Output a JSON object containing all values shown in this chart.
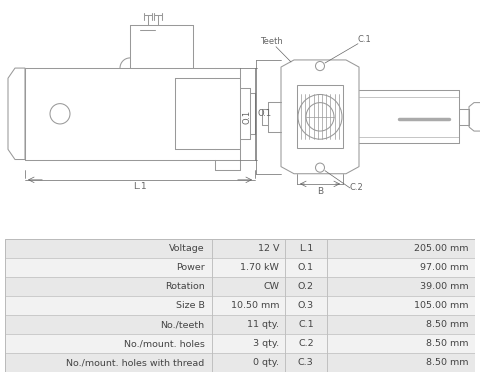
{
  "bg_color": "#ffffff",
  "diagram_bg": "#ffffff",
  "table_bg_alt": [
    "#e8e8e8",
    "#f2f2f2"
  ],
  "table_border": "#bbbbbb",
  "line_color": "#999999",
  "dim_color": "#666666",
  "text_color": "#444444",
  "table_rows": [
    {
      "label": "Voltage",
      "value": "12 V",
      "dim_label": "L.1",
      "dim_value": "205.00 mm"
    },
    {
      "label": "Power",
      "value": "1.70 kW",
      "dim_label": "O.1",
      "dim_value": "97.00 mm"
    },
    {
      "label": "Rotation",
      "value": "CW",
      "dim_label": "O.2",
      "dim_value": "39.00 mm"
    },
    {
      "label": "Size B",
      "value": "10.50 mm",
      "dim_label": "O.3",
      "dim_value": "105.00 mm"
    },
    {
      "label": "No./teeth",
      "value": "11 qty.",
      "dim_label": "C.1",
      "dim_value": "8.50 mm"
    },
    {
      "label": "No./mount. holes",
      "value": "3 qty.",
      "dim_label": "C.2",
      "dim_value": "8.50 mm"
    },
    {
      "label": "No./mount. holes with thread",
      "value": "0 qty.",
      "dim_label": "C.3",
      "dim_value": "8.50 mm"
    }
  ]
}
